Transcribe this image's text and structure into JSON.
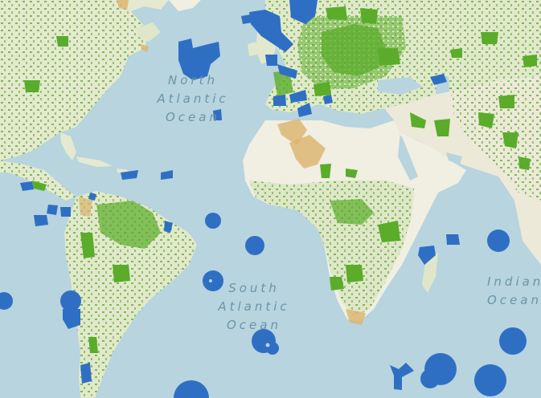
{
  "map": {
    "colors": {
      "ocean": "#b7d4df",
      "land": "#f1eee2",
      "land_vegetated": "#dfe6c9",
      "terrestrial_protected": "#5aac2a",
      "marine_protected": "#2f6fc3",
      "desert_protected": "#dcb36d",
      "coastline": "#cfd9c6"
    },
    "labels": {
      "north_atlantic": {
        "line1": "North",
        "line2": "Atlantic",
        "line3": "Ocean"
      },
      "south_atlantic": {
        "line1": "South",
        "line2": "Atlantic",
        "line3": "Ocean"
      },
      "indian": {
        "line1": "Indian",
        "line2": "Ocean"
      }
    }
  }
}
